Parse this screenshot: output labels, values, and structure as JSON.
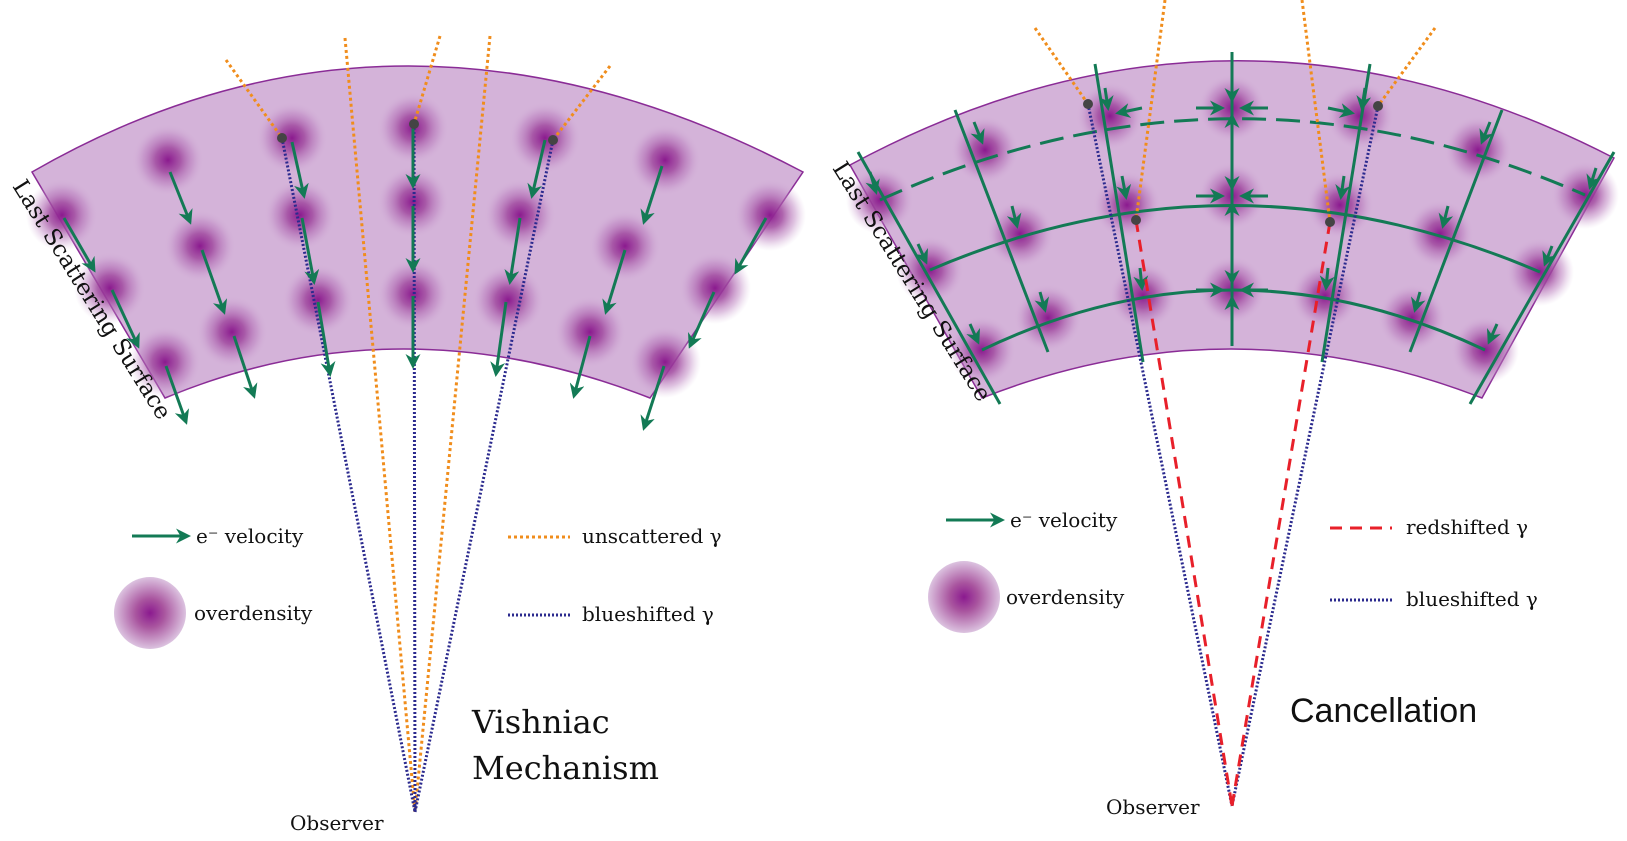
{
  "colors": {
    "shell_fill": "#d4b3d9",
    "shell_stroke": "#8a2c96",
    "overdensity_core": "#8b1a8f",
    "velocity_arrow": "#137a55",
    "unscattered_photon": "#f08d1c",
    "blueshifted_photon": "#2b2a8e",
    "redshifted_photon": "#e8202a",
    "scatter_point": "#444444"
  },
  "left_panel": {
    "surface_label": "Last Scattering Surface",
    "title_line1": "Vishniac",
    "title_line2": "Mechanism",
    "observer_label": "Observer",
    "legend": {
      "velocity": "e⁻ velocity",
      "overdensity": "overdensity",
      "unscattered": "unscattered γ",
      "blueshifted": "blueshifted γ"
    }
  },
  "right_panel": {
    "surface_label": "Last Scattering Surface",
    "title": "Cancellation",
    "observer_label": "Observer",
    "legend": {
      "velocity": "e⁻ velocity",
      "overdensity": "overdensity",
      "redshifted": "redshifted γ",
      "blueshifted": "blueshifted γ"
    }
  }
}
